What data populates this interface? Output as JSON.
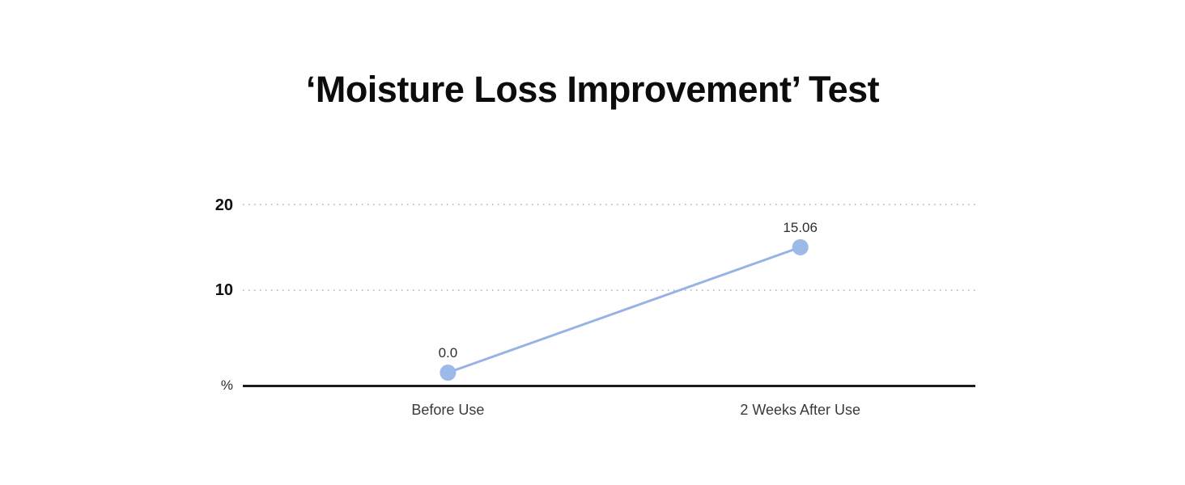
{
  "page": {
    "background": "#ffffff"
  },
  "chart_data": {
    "type": "line",
    "title": "‘Moisture Loss Improvement’ Test",
    "categories": [
      "Before Use",
      "2 Weeks After Use"
    ],
    "values": [
      0.0,
      15.06
    ],
    "value_labels": [
      "0.0",
      "15.06"
    ],
    "xlabel": "",
    "ylabel": "%",
    "yticks": [
      10,
      20
    ],
    "ylim": [
      0,
      21
    ],
    "grid": "horizontal-dotted",
    "legend": "none",
    "line_color": "#96b3e3",
    "marker_color": "#9db9e8",
    "axis_color": "#1c1c1c",
    "gridline_color": "#c2c2c2",
    "title_color": "#0c0c0c"
  }
}
